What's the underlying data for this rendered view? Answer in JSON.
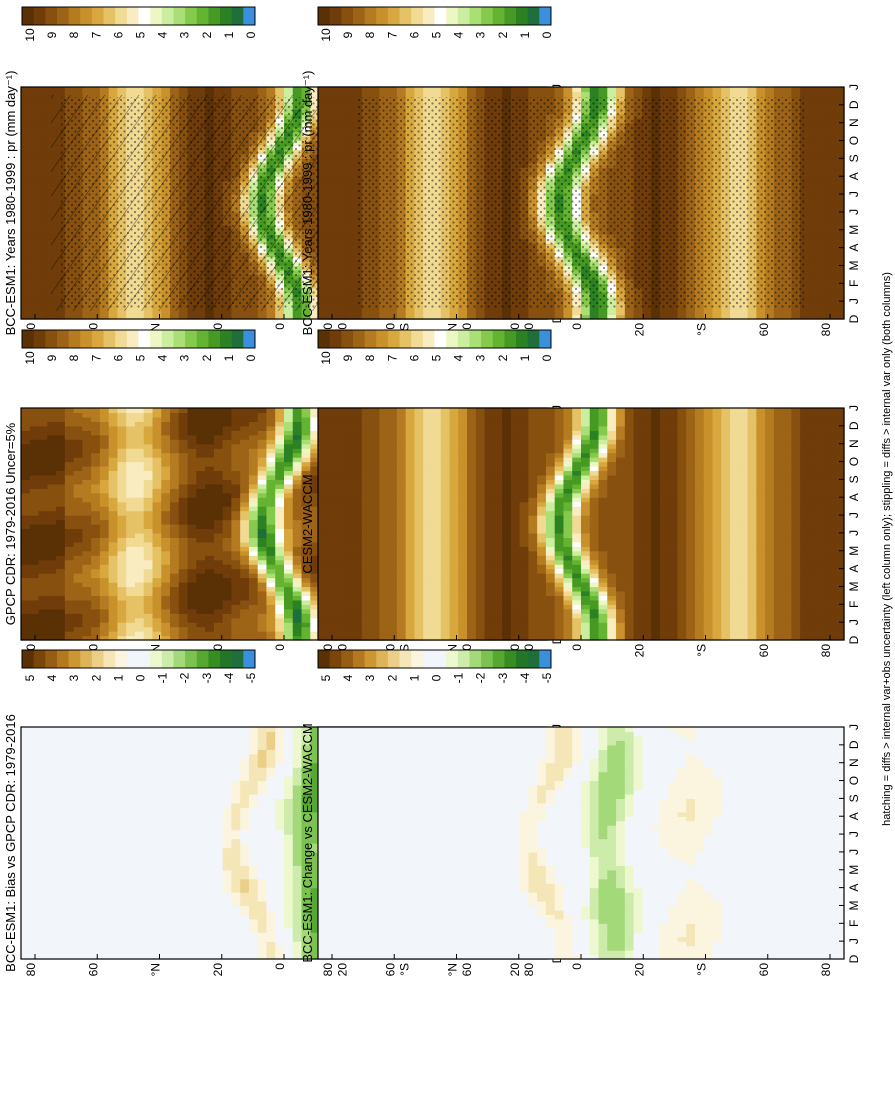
{
  "figure": {
    "footnote": "hatching = diffs > internal var+obs uncertainty (left column only); stippling = diffs > internal var only (both columns)"
  },
  "colors": {
    "precip": [
      "#5a3005",
      "#6f3c0a",
      "#87500f",
      "#9d6418",
      "#b47b21",
      "#c8912b",
      "#d8a83f",
      "#e6c266",
      "#f1da93",
      "#f8ecc0",
      "#ffffff",
      "#ecf7c4",
      "#cceea0",
      "#a9df74",
      "#85ca4c",
      "#64b331",
      "#469a23",
      "#2c8222",
      "#1f6f3a",
      "#3c8fdc"
    ],
    "diff": [
      "#5a3005",
      "#7a4509",
      "#965e14",
      "#b4791f",
      "#cc9632",
      "#ddb458",
      "#ebcf89",
      "#f5e6b8",
      "#fbf5df",
      "#f2f5fa",
      "#f2f5fa",
      "#eef8cf",
      "#cdebaa",
      "#a4d97a",
      "#7cc251",
      "#56a832",
      "#388d22",
      "#237627",
      "#1f6f3a",
      "#3c8fdc"
    ]
  },
  "chart_data": [
    {
      "id": "bcc-esm1-left",
      "type": "heatmap",
      "title": "BCC-ESM1: Years 1980-1999 : pr (mm day⁻¹)",
      "x": [
        "D",
        "J",
        "F",
        "M",
        "A",
        "M",
        "J",
        "J",
        "A",
        "S",
        "O",
        "N",
        "D",
        "J"
      ],
      "y_ticks": [
        "80",
        "60",
        "°N",
        "20",
        "0",
        "20",
        "°S",
        "60",
        "80"
      ],
      "colorbar_ticks": [
        "10",
        "9",
        "8",
        "7",
        "6",
        "5",
        "4",
        "3",
        "2",
        "1",
        "0"
      ],
      "zlim": [
        0,
        10
      ],
      "hatching": "diffs > internal var+obs uncertainty",
      "stippling": "diffs > internal var"
    },
    {
      "id": "bcc-esm1-right",
      "type": "heatmap",
      "title": "BCC-ESM1: Years 1980-1999 : pr (mm day⁻¹)",
      "x": [
        "D",
        "J",
        "F",
        "M",
        "A",
        "M",
        "J",
        "J",
        "A",
        "S",
        "O",
        "N",
        "D",
        "J"
      ],
      "y_ticks": [
        "80",
        "60",
        "°N",
        "20",
        "0",
        "20",
        "°S",
        "60",
        "80"
      ],
      "colorbar_ticks": [
        "10",
        "9",
        "8",
        "7",
        "6",
        "5",
        "4",
        "3",
        "2",
        "1",
        "0"
      ],
      "zlim": [
        0,
        10
      ],
      "stippling": "diffs > internal var"
    },
    {
      "id": "gpcp-cdr",
      "type": "heatmap",
      "title": "GPCP CDR: 1979-2016 Uncer=5%",
      "x": [
        "D",
        "J",
        "F",
        "M",
        "A",
        "M",
        "J",
        "J",
        "A",
        "S",
        "O",
        "N",
        "D",
        "J"
      ],
      "y_ticks": [
        "80",
        "60",
        "°N",
        "20",
        "0",
        "20",
        "°S",
        "60",
        "80"
      ],
      "colorbar_ticks": [
        "10",
        "9",
        "8",
        "7",
        "6",
        "5",
        "4",
        "3",
        "2",
        "1",
        "0"
      ],
      "zlim": [
        0,
        10
      ]
    },
    {
      "id": "cesm2-waccm",
      "type": "heatmap",
      "title": "CESM2-WACCM",
      "x": [
        "D",
        "J",
        "F",
        "M",
        "A",
        "M",
        "J",
        "J",
        "A",
        "S",
        "O",
        "N",
        "D",
        "J"
      ],
      "y_ticks": [
        "80",
        "60",
        "°N",
        "20",
        "0",
        "20",
        "°S",
        "60",
        "80"
      ],
      "colorbar_ticks": [
        "10",
        "9",
        "8",
        "7",
        "6",
        "5",
        "4",
        "3",
        "2",
        "1",
        "0"
      ],
      "zlim": [
        0,
        10
      ]
    },
    {
      "id": "bias-vs-gpcp",
      "type": "heatmap",
      "title": "BCC-ESM1: Bias vs GPCP CDR: 1979-2016",
      "x": [
        "D",
        "J",
        "F",
        "M",
        "A",
        "M",
        "J",
        "J",
        "A",
        "S",
        "O",
        "N",
        "D",
        "J"
      ],
      "y_ticks": [
        "80",
        "60",
        "°N",
        "20",
        "0",
        "20",
        "°S",
        "60",
        "80"
      ],
      "colorbar_ticks": [
        "5",
        "4",
        "3",
        "2",
        "1",
        "0",
        "-1",
        "-2",
        "-3",
        "-4",
        "-5"
      ],
      "zlim": [
        -5,
        5
      ]
    },
    {
      "id": "change-vs-cesm2",
      "type": "heatmap",
      "title": "BCC-ESM1: Change vs CESM2-WACCM",
      "x": [
        "D",
        "J",
        "F",
        "M",
        "A",
        "M",
        "J",
        "J",
        "A",
        "S",
        "O",
        "N",
        "D",
        "J"
      ],
      "y_ticks": [
        "80",
        "60",
        "°N",
        "20",
        "0",
        "20",
        "°S",
        "60",
        "80"
      ],
      "colorbar_ticks": [
        "5",
        "4",
        "3",
        "2",
        "1",
        "0",
        "-1",
        "-2",
        "-3",
        "-4",
        "-5"
      ],
      "zlim": [
        -5,
        5
      ]
    }
  ]
}
